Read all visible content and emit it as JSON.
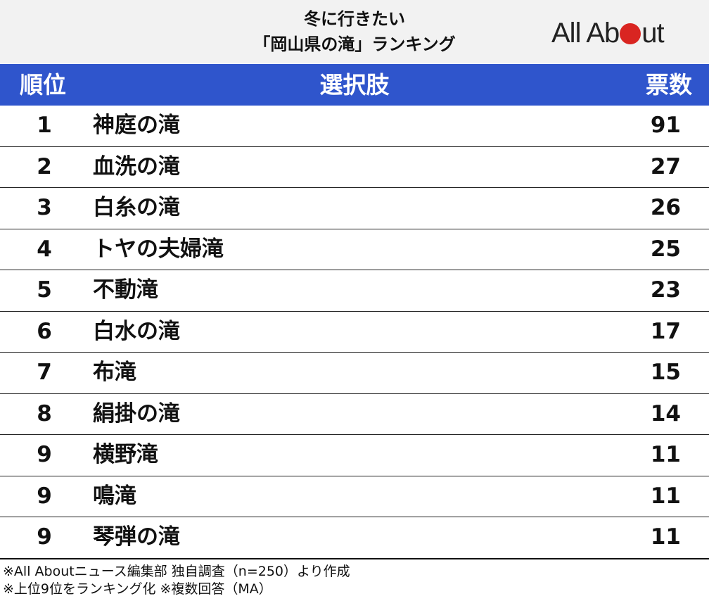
{
  "header": {
    "title_line1": "冬に行きたい",
    "title_line2": "「岡山県の滝」ランキング",
    "logo": {
      "text_before": "All Ab",
      "text_after": "ut",
      "dot_color": "#d92521"
    }
  },
  "columns": {
    "rank": "順位",
    "choice": "選択肢",
    "votes": "票数"
  },
  "rows": [
    {
      "rank": "1",
      "name": "神庭の滝",
      "votes": "91"
    },
    {
      "rank": "2",
      "name": "血洗の滝",
      "votes": "27"
    },
    {
      "rank": "3",
      "name": "白糸の滝",
      "votes": "26"
    },
    {
      "rank": "4",
      "name": "トヤの夫婦滝",
      "votes": "25"
    },
    {
      "rank": "5",
      "name": "不動滝",
      "votes": "23"
    },
    {
      "rank": "6",
      "name": "白水の滝",
      "votes": "17"
    },
    {
      "rank": "7",
      "name": "布滝",
      "votes": "15"
    },
    {
      "rank": "8",
      "name": "絹掛の滝",
      "votes": "14"
    },
    {
      "rank": "9",
      "name": "横野滝",
      "votes": "11"
    },
    {
      "rank": "9",
      "name": "鳴滝",
      "votes": "11"
    },
    {
      "rank": "9",
      "name": "琴弾の滝",
      "votes": "11"
    }
  ],
  "footnotes": {
    "line1": "※All Aboutニュース編集部 独自調査（n=250）より作成",
    "line2": "※上位9位をランキング化 ※複数回答（MA）"
  },
  "colors": {
    "header_blue": "#2f55cc",
    "header_band": "#f2f2f2",
    "logo_red": "#d92521"
  }
}
